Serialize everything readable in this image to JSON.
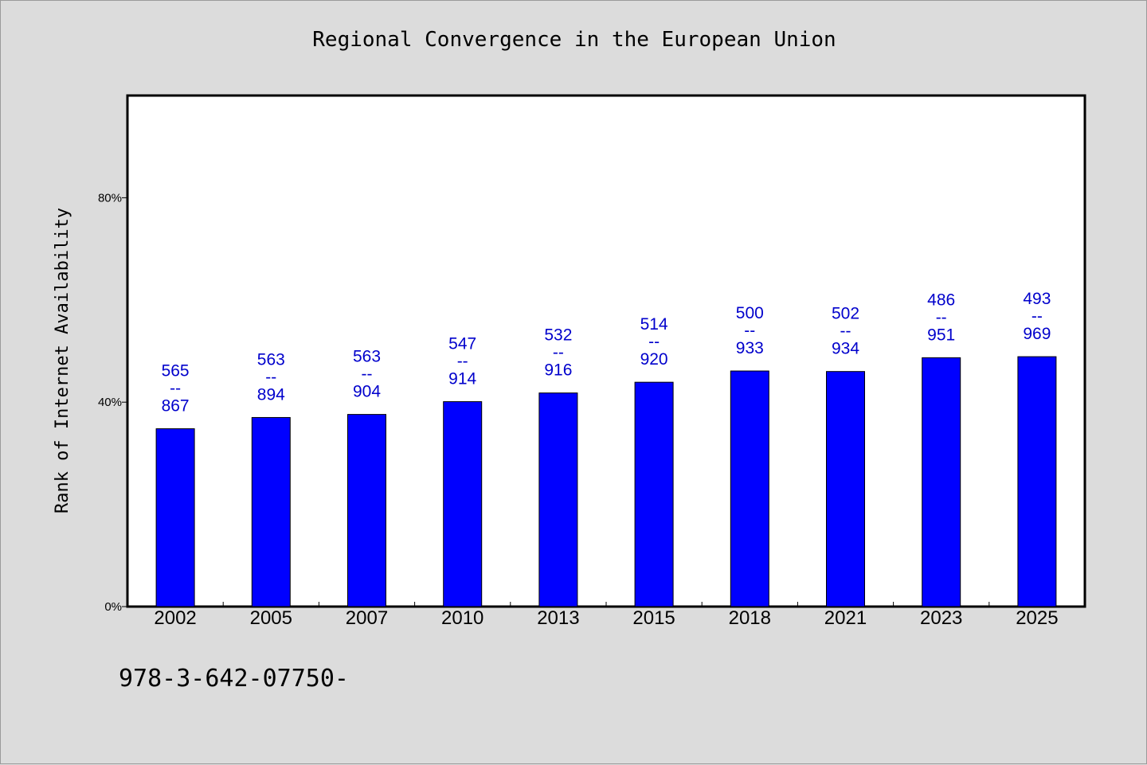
{
  "chart_data": {
    "type": "bar",
    "title": "Regional Convergence in the European Union",
    "xlabel": "",
    "ylabel": "Rank of Internet Availability",
    "categories": [
      "2002",
      "2005",
      "2007",
      "2010",
      "2013",
      "2015",
      "2018",
      "2021",
      "2023",
      "2025"
    ],
    "values": [
      34.8,
      37.0,
      37.6,
      40.1,
      41.8,
      43.9,
      46.1,
      46.0,
      48.7,
      48.9
    ],
    "data_labels": [
      {
        "top": "565",
        "sep": "--",
        "bottom": "867"
      },
      {
        "top": "563",
        "sep": "--",
        "bottom": "894"
      },
      {
        "top": "563",
        "sep": "--",
        "bottom": "904"
      },
      {
        "top": "547",
        "sep": "--",
        "bottom": "914"
      },
      {
        "top": "532",
        "sep": "--",
        "bottom": "916"
      },
      {
        "top": "514",
        "sep": "--",
        "bottom": "920"
      },
      {
        "top": "500",
        "sep": "--",
        "bottom": "933"
      },
      {
        "top": "502",
        "sep": "--",
        "bottom": "934"
      },
      {
        "top": "486",
        "sep": "--",
        "bottom": "951"
      },
      {
        "top": "493",
        "sep": "--",
        "bottom": "969"
      }
    ],
    "yticks": [
      0,
      40,
      80
    ],
    "ytick_labels": [
      "0%",
      "40%",
      "80%"
    ],
    "ylim": [
      0,
      100
    ],
    "grid": false,
    "legend": "none",
    "bar_color": "#0000ff",
    "label_color": "#0000cc"
  },
  "footer_text": "978-3-642-07750-"
}
